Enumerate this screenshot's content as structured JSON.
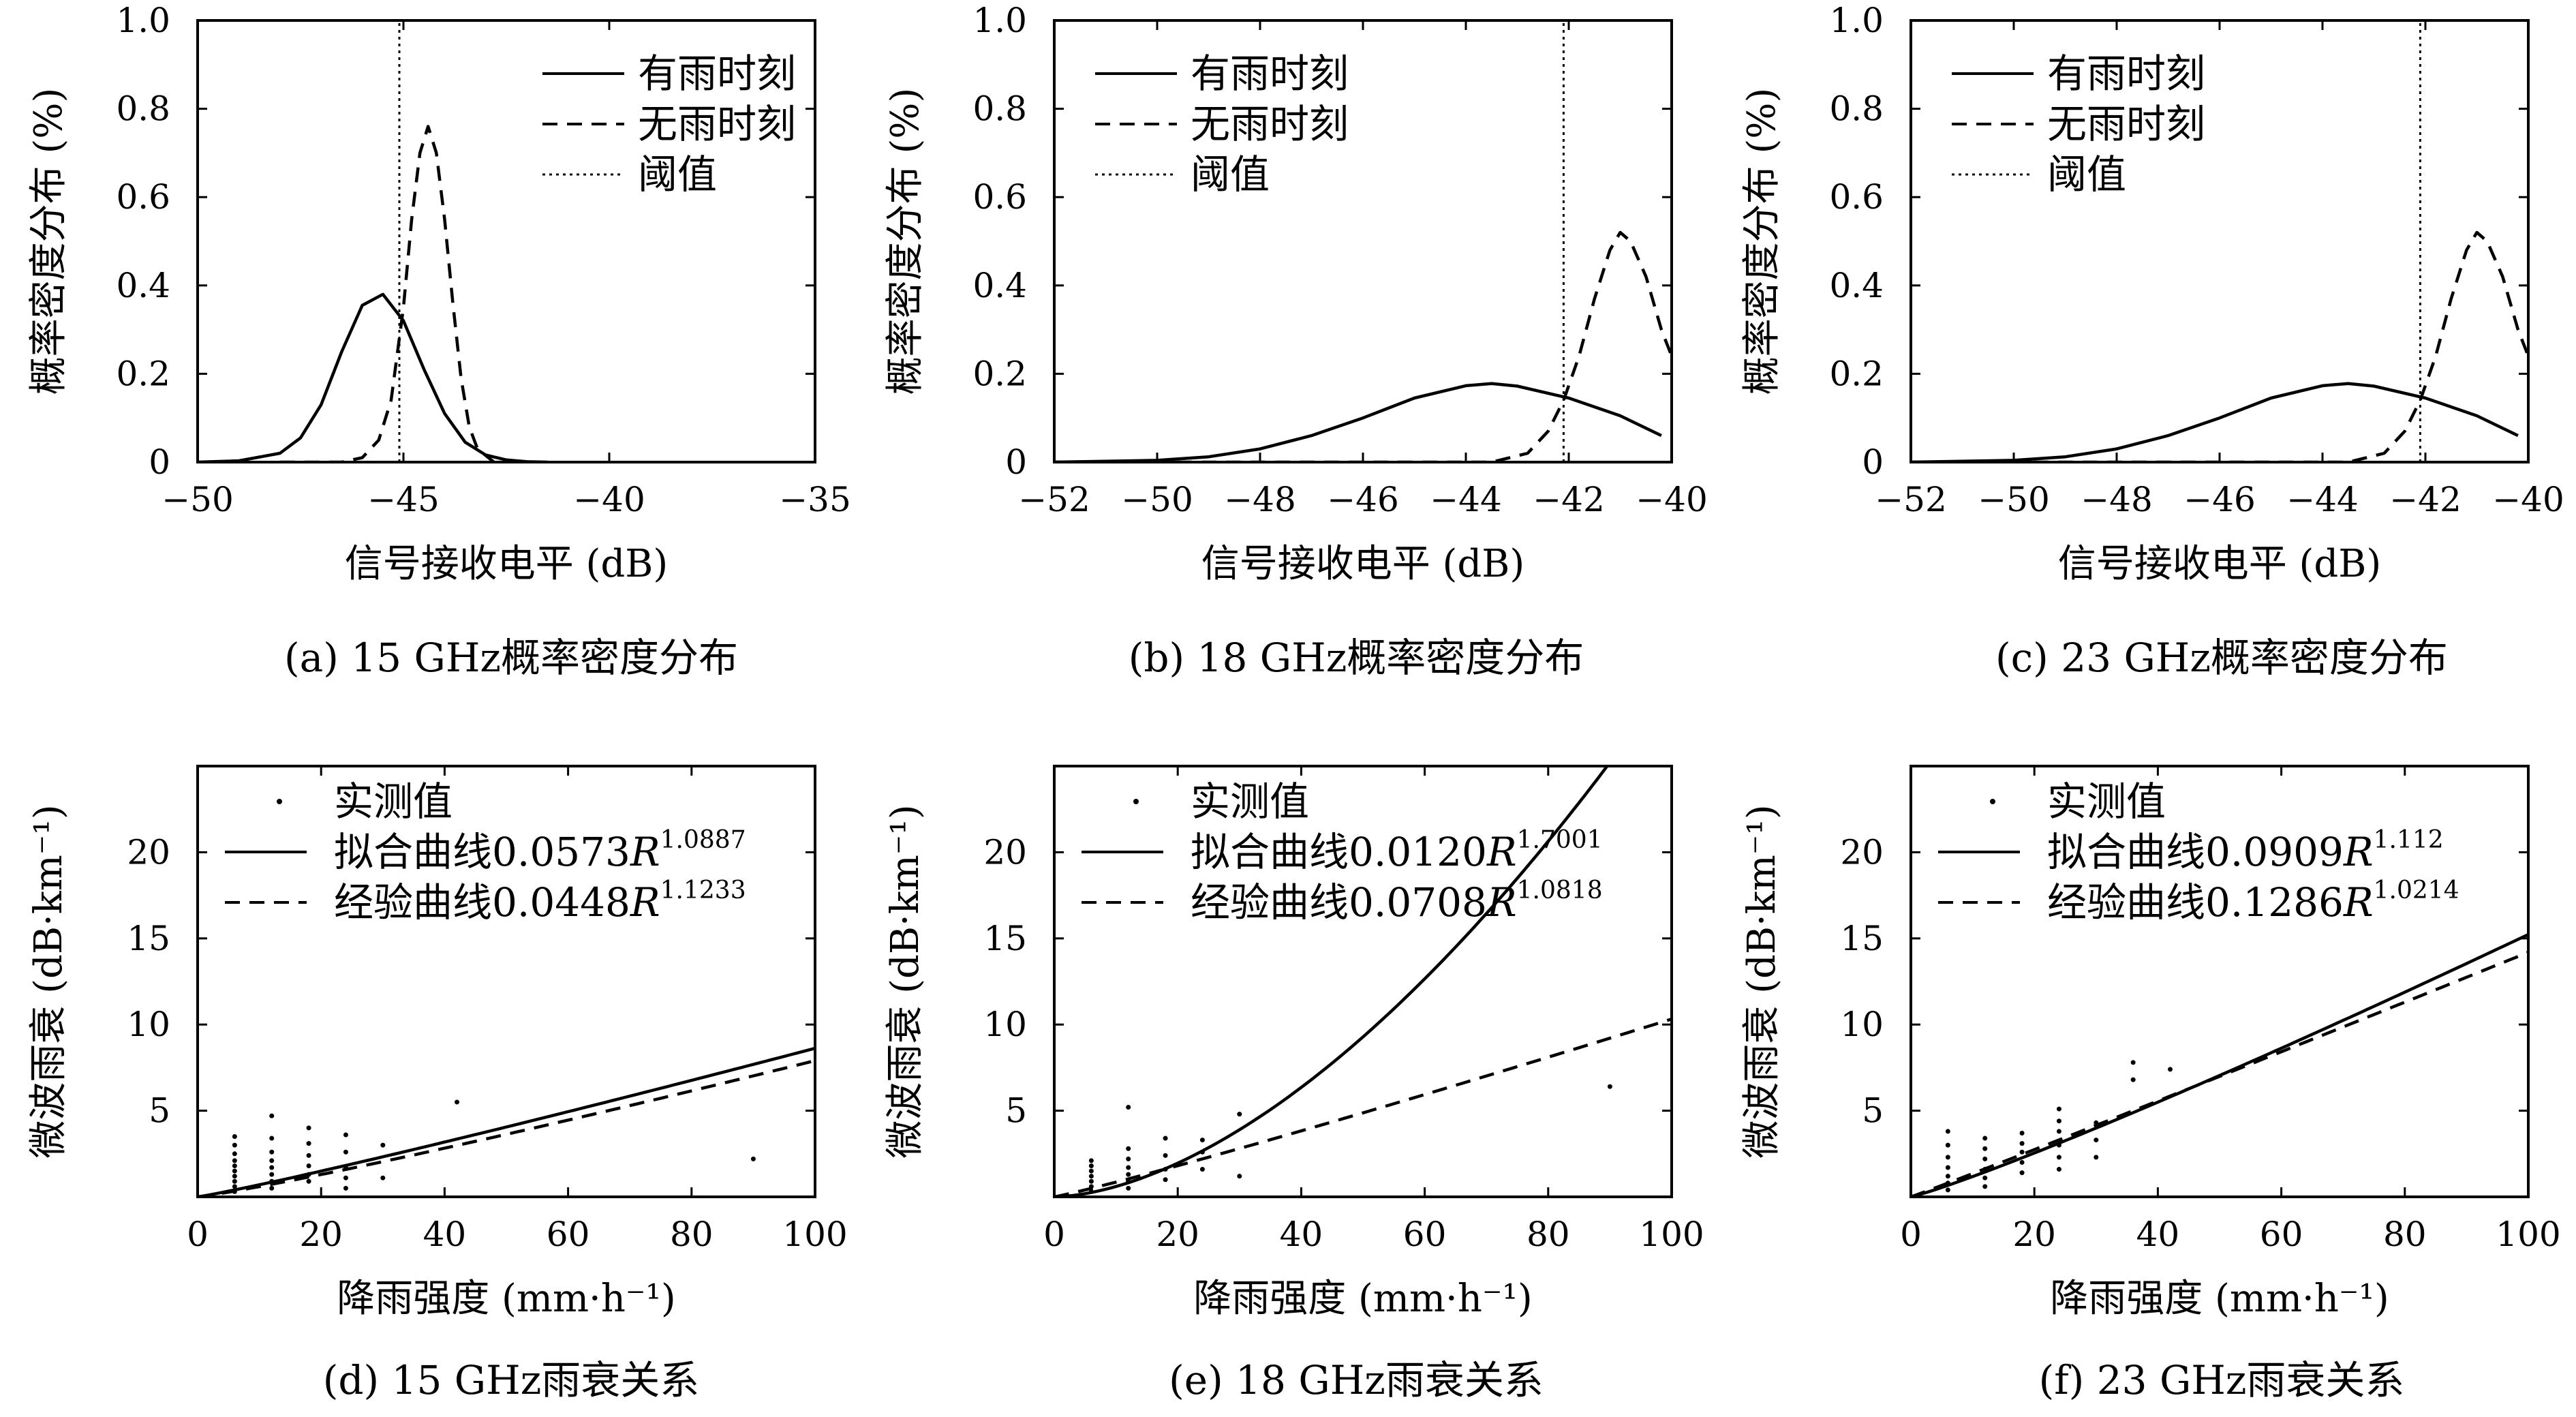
{
  "chart_data": [
    {
      "type": "line",
      "caption": "(a) 15 GHz概率密度分布",
      "xlabel": "信号接收电平 (dB)",
      "ylabel": "概率密度分布 (%)",
      "xlim": [
        -50,
        -35
      ],
      "ylim": [
        0,
        1.0
      ],
      "xticks": [
        "−50",
        "−45",
        "−40",
        "−35"
      ],
      "yticks": [
        "0",
        "0.2",
        "0.4",
        "0.6",
        "0.8",
        "1.0"
      ],
      "legend_position": "top-right",
      "threshold_x": -45.1,
      "series": [
        {
          "name": "有雨时刻",
          "style": "solid",
          "x": [
            -50,
            -49,
            -48,
            -47.5,
            -47,
            -46.5,
            -46,
            -45.5,
            -45,
            -44.5,
            -44,
            -43.5,
            -43,
            -42.5,
            -42,
            -41.5
          ],
          "y": [
            0.0,
            0.003,
            0.02,
            0.055,
            0.13,
            0.25,
            0.355,
            0.38,
            0.32,
            0.21,
            0.11,
            0.045,
            0.016,
            0.005,
            0.001,
            0.0
          ]
        },
        {
          "name": "无雨时刻",
          "style": "dashed",
          "x": [
            -48,
            -46.5,
            -46,
            -45.6,
            -45.3,
            -45.0,
            -44.8,
            -44.6,
            -44.4,
            -44.2,
            -44.0,
            -43.8,
            -43.6,
            -43.4,
            -43.2,
            -42.8
          ],
          "y": [
            0.0,
            0.0,
            0.01,
            0.05,
            0.14,
            0.35,
            0.55,
            0.7,
            0.76,
            0.7,
            0.55,
            0.36,
            0.19,
            0.08,
            0.03,
            0.0
          ]
        },
        {
          "name": "阈值",
          "style": "dotted",
          "x": [
            -45.1,
            -45.1
          ],
          "y": [
            0,
            1.0
          ]
        }
      ]
    },
    {
      "type": "line",
      "caption": "(b) 18 GHz概率密度分布",
      "xlabel": "信号接收电平 (dB)",
      "ylabel": "概率密度分布 (%)",
      "xlim": [
        -52,
        -40
      ],
      "ylim": [
        0,
        1.0
      ],
      "xticks": [
        "−52",
        "−50",
        "−48",
        "−46",
        "−44",
        "−42",
        "−40"
      ],
      "yticks": [
        "0",
        "0.2",
        "0.4",
        "0.6",
        "0.8",
        "1.0"
      ],
      "legend_position": "top-left",
      "threshold_x": -42.1,
      "series": [
        {
          "name": "有雨时刻",
          "style": "solid",
          "x": [
            -52,
            -50,
            -49,
            -48,
            -47,
            -46,
            -45,
            -44,
            -43.5,
            -43,
            -42,
            -41,
            -40.2
          ],
          "y": [
            0.0,
            0.004,
            0.012,
            0.03,
            0.06,
            0.1,
            0.145,
            0.173,
            0.178,
            0.172,
            0.145,
            0.105,
            0.06
          ]
        },
        {
          "name": "无雨时刻",
          "style": "dashed",
          "x": [
            -52,
            -43.5,
            -42.8,
            -42.4,
            -42.1,
            -41.8,
            -41.5,
            -41.2,
            -41.0,
            -40.8,
            -40.5,
            -40.2,
            -40.0
          ],
          "y": [
            0.0,
            0.0,
            0.02,
            0.07,
            0.14,
            0.24,
            0.37,
            0.48,
            0.52,
            0.5,
            0.42,
            0.3,
            0.24
          ]
        },
        {
          "name": "阈值",
          "style": "dotted",
          "x": [
            -42.1,
            -42.1
          ],
          "y": [
            0,
            1.0
          ]
        }
      ]
    },
    {
      "type": "line",
      "caption": "(c) 23 GHz概率密度分布",
      "xlabel": "信号接收电平 (dB)",
      "ylabel": "概率密度分布 (%)",
      "xlim": [
        -52,
        -40
      ],
      "ylim": [
        0,
        1.0
      ],
      "xticks": [
        "−52",
        "−50",
        "−48",
        "−46",
        "−44",
        "−42",
        "−40"
      ],
      "yticks": [
        "0",
        "0.2",
        "0.4",
        "0.6",
        "0.8",
        "1.0"
      ],
      "legend_position": "top-left",
      "threshold_x": -42.1,
      "series": [
        {
          "name": "有雨时刻",
          "style": "solid",
          "x": [
            -52,
            -50,
            -49,
            -48,
            -47,
            -46,
            -45,
            -44,
            -43.5,
            -43,
            -42,
            -41,
            -40.2
          ],
          "y": [
            0.0,
            0.004,
            0.012,
            0.03,
            0.06,
            0.1,
            0.145,
            0.173,
            0.178,
            0.172,
            0.145,
            0.105,
            0.06
          ]
        },
        {
          "name": "无雨时刻",
          "style": "dashed",
          "x": [
            -52,
            -43.5,
            -42.8,
            -42.4,
            -42.1,
            -41.8,
            -41.5,
            -41.2,
            -41.0,
            -40.8,
            -40.5,
            -40.2,
            -40.0
          ],
          "y": [
            0.0,
            0.0,
            0.02,
            0.07,
            0.14,
            0.24,
            0.37,
            0.48,
            0.52,
            0.5,
            0.42,
            0.3,
            0.24
          ]
        },
        {
          "name": "阈值",
          "style": "dotted",
          "x": [
            -42.1,
            -42.1
          ],
          "y": [
            0,
            1.0
          ]
        }
      ]
    },
    {
      "type": "scatter",
      "caption": "(d) 15 GHz雨衰关系",
      "xlabel": "降雨强度 (mm·h⁻¹)",
      "ylabel": "微波雨衰 (dB·km⁻¹)",
      "xlim": [
        0,
        100
      ],
      "ylim": [
        0,
        25
      ],
      "xticks": [
        "0",
        "20",
        "40",
        "60",
        "80",
        "100"
      ],
      "yticks": [
        "5",
        "10",
        "15",
        "20"
      ],
      "legend_position": "top-left",
      "legend": [
        "实测值",
        "拟合曲线0.0573R1.0887",
        "经验曲线0.0448R1.1233"
      ],
      "fit": {
        "name": "拟合曲线",
        "coef_text": "0.0573",
        "exp_text": "1.0887",
        "a": 0.0573,
        "b": 1.0887
      },
      "empirical": {
        "name": "经验曲线",
        "coef_text": "0.0448",
        "exp_text": "1.1233",
        "a": 0.0448,
        "b": 1.1233
      },
      "measured": [
        [
          6,
          0.3
        ],
        [
          6,
          0.6
        ],
        [
          6,
          0.9
        ],
        [
          6,
          1.2
        ],
        [
          6,
          1.5
        ],
        [
          6,
          1.8
        ],
        [
          6,
          2.1
        ],
        [
          6,
          2.5
        ],
        [
          6,
          3.0
        ],
        [
          6,
          3.5
        ],
        [
          12,
          0.5
        ],
        [
          12,
          0.9
        ],
        [
          12,
          1.3
        ],
        [
          12,
          1.7
        ],
        [
          12,
          2.1
        ],
        [
          12,
          2.6
        ],
        [
          12,
          3.4
        ],
        [
          12,
          4.7
        ],
        [
          18,
          0.9
        ],
        [
          18,
          1.3
        ],
        [
          18,
          1.8
        ],
        [
          18,
          2.4
        ],
        [
          18,
          3.1
        ],
        [
          18,
          4.0
        ],
        [
          24,
          0.5
        ],
        [
          24,
          1.1
        ],
        [
          24,
          1.7
        ],
        [
          24,
          2.6
        ],
        [
          24,
          3.6
        ],
        [
          30,
          1.1
        ],
        [
          30,
          3.0
        ],
        [
          42,
          5.5
        ],
        [
          90,
          2.2
        ]
      ]
    },
    {
      "type": "scatter",
      "caption": "(e) 18 GHz雨衰关系",
      "xlabel": "降雨强度 (mm·h⁻¹)",
      "ylabel": "微波雨衰 (dB·km⁻¹)",
      "xlim": [
        0,
        100
      ],
      "ylim": [
        0,
        25
      ],
      "xticks": [
        "0",
        "20",
        "40",
        "60",
        "80",
        "100"
      ],
      "yticks": [
        "5",
        "10",
        "15",
        "20"
      ],
      "legend_position": "top-left",
      "legend": [
        "实测值",
        "拟合曲线0.0120R1.7001",
        "经验曲线0.0708R1.0818"
      ],
      "fit": {
        "name": "拟合曲线",
        "coef_text": "0.0120",
        "exp_text": "1.7001",
        "a": 0.012,
        "b": 1.7001
      },
      "empirical": {
        "name": "经验曲线",
        "coef_text": "0.0708",
        "exp_text": "1.0818",
        "a": 0.0708,
        "b": 1.0818
      },
      "measured": [
        [
          6,
          0.3
        ],
        [
          6,
          0.6
        ],
        [
          6,
          0.9
        ],
        [
          6,
          1.2
        ],
        [
          6,
          1.5
        ],
        [
          6,
          1.8
        ],
        [
          6,
          2.1
        ],
        [
          12,
          0.5
        ],
        [
          12,
          0.9
        ],
        [
          12,
          1.3
        ],
        [
          12,
          1.7
        ],
        [
          12,
          2.2
        ],
        [
          12,
          2.8
        ],
        [
          12,
          5.2
        ],
        [
          18,
          1.0
        ],
        [
          18,
          1.6
        ],
        [
          18,
          2.4
        ],
        [
          18,
          3.4
        ],
        [
          24,
          1.6
        ],
        [
          24,
          2.6
        ],
        [
          24,
          3.3
        ],
        [
          30,
          1.2
        ],
        [
          30,
          4.8
        ],
        [
          90,
          6.4
        ]
      ]
    },
    {
      "type": "scatter",
      "caption": "(f) 23 GHz雨衰关系",
      "xlabel": "降雨强度 (mm·h⁻¹)",
      "ylabel": "微波雨衰 (dB·km⁻¹)",
      "xlim": [
        0,
        100
      ],
      "ylim": [
        0,
        25
      ],
      "xticks": [
        "0",
        "20",
        "40",
        "60",
        "80",
        "100"
      ],
      "yticks": [
        "5",
        "10",
        "15",
        "20"
      ],
      "legend_position": "top-left",
      "legend": [
        "实测值",
        "拟合曲线0.0909R1.112",
        "经验曲线0.1286R1.0214"
      ],
      "fit": {
        "name": "拟合曲线",
        "coef_text": "0.0909",
        "exp_text": "1.112",
        "a": 0.0909,
        "b": 1.112
      },
      "empirical": {
        "name": "经验曲线",
        "coef_text": "0.1286",
        "exp_text": "1.0214",
        "a": 0.1286,
        "b": 1.0214
      },
      "measured": [
        [
          6,
          0.4
        ],
        [
          6,
          0.8
        ],
        [
          6,
          1.2
        ],
        [
          6,
          1.7
        ],
        [
          6,
          2.3
        ],
        [
          6,
          3.0
        ],
        [
          6,
          3.8
        ],
        [
          12,
          0.6
        ],
        [
          12,
          1.1
        ],
        [
          12,
          1.6
        ],
        [
          12,
          2.2
        ],
        [
          12,
          2.8
        ],
        [
          12,
          3.4
        ],
        [
          18,
          1.4
        ],
        [
          18,
          2.0
        ],
        [
          18,
          2.6
        ],
        [
          18,
          3.1
        ],
        [
          18,
          3.7
        ],
        [
          24,
          1.6
        ],
        [
          24,
          2.3
        ],
        [
          24,
          3.0
        ],
        [
          24,
          3.8
        ],
        [
          24,
          4.4
        ],
        [
          24,
          5.1
        ],
        [
          30,
          2.3
        ],
        [
          30,
          3.3
        ],
        [
          30,
          4.3
        ],
        [
          36,
          6.8
        ],
        [
          36,
          7.8
        ],
        [
          42,
          7.4
        ]
      ]
    }
  ]
}
